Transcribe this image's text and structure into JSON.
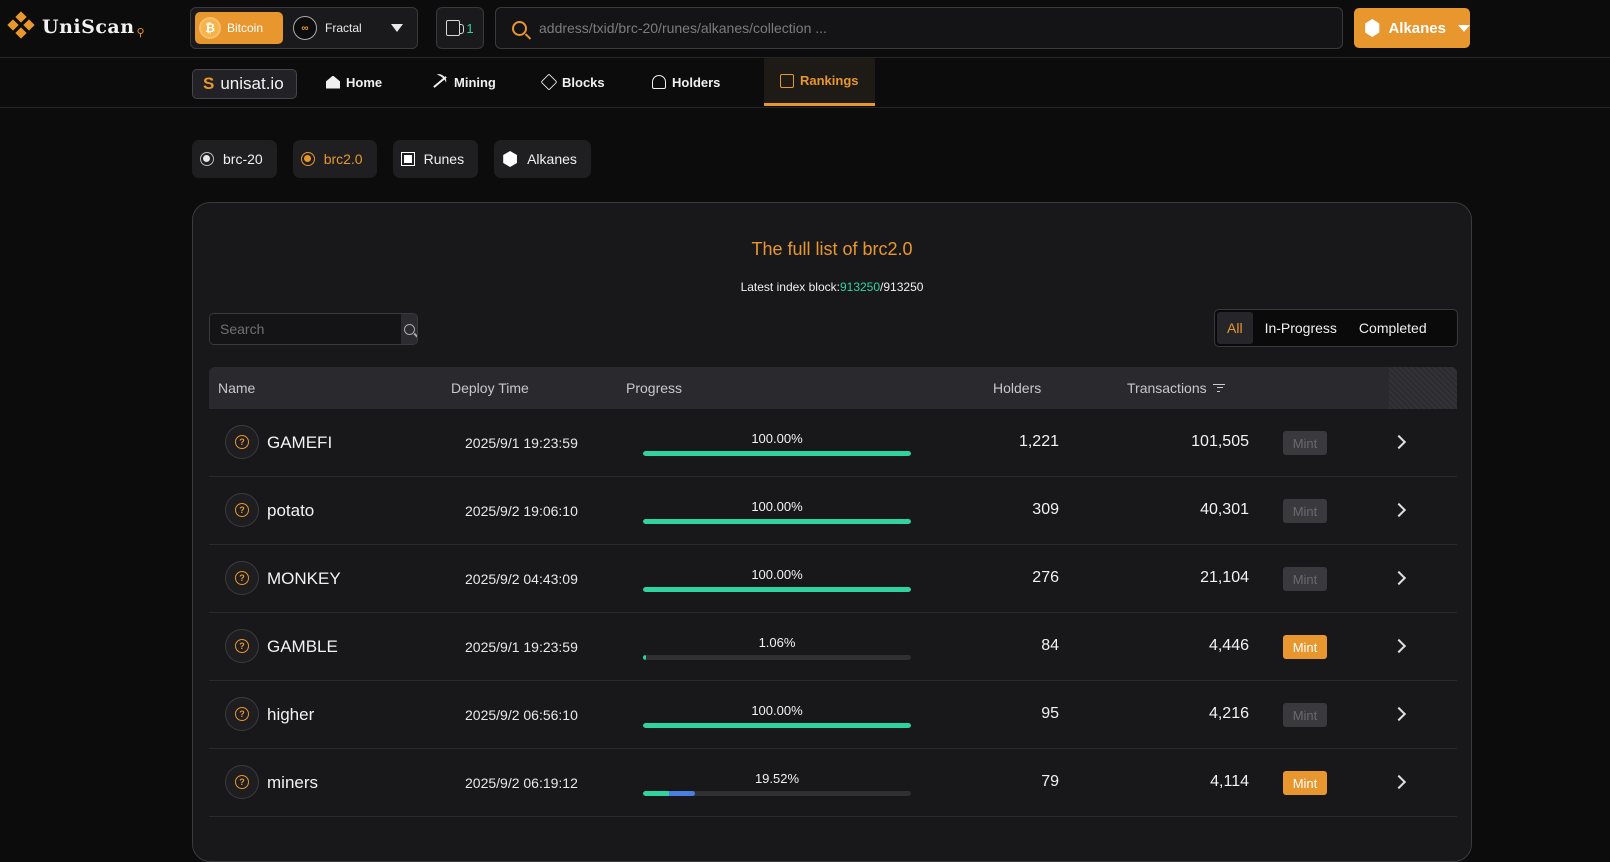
{
  "brand": {
    "name": "UniScan",
    "accent": "#e8962e"
  },
  "network": {
    "selected": "Bitcoin",
    "other": "Fractal"
  },
  "gas": {
    "count": "1"
  },
  "search": {
    "placeholder": "address/txid/brc-20/runes/alkanes/collection ..."
  },
  "protocol_button": {
    "label": "Alkanes"
  },
  "nav": {
    "unisat": "unisat.io",
    "items": [
      {
        "label": "Home"
      },
      {
        "label": "Mining"
      },
      {
        "label": "Blocks"
      },
      {
        "label": "Holders"
      },
      {
        "label": "Rankings"
      }
    ]
  },
  "filters": [
    {
      "label": "brc-20"
    },
    {
      "label": "brc2.0"
    },
    {
      "label": "Runes"
    },
    {
      "label": "Alkanes"
    }
  ],
  "panel": {
    "title": "The full list of brc2.0",
    "index_label": "Latest index block:",
    "index_current": "913250",
    "index_sep": "/",
    "index_total": "913250",
    "search_placeholder": "Search",
    "segments": [
      "All",
      "In-Progress",
      "Completed"
    ]
  },
  "table": {
    "headers": {
      "name": "Name",
      "deploy": "Deploy Time",
      "progress": "Progress",
      "holders": "Holders",
      "tx": "Transactions"
    },
    "mint_label": "Mint",
    "rows": [
      {
        "name": "GAMEFI",
        "time": "2025/9/1 19:23:59",
        "progress_text": "100.00%",
        "progress": 100,
        "holders": "1,221",
        "tx": "101,505",
        "mint_enabled": false
      },
      {
        "name": "potato",
        "time": "2025/9/2 19:06:10",
        "progress_text": "100.00%",
        "progress": 100,
        "holders": "309",
        "tx": "40,301",
        "mint_enabled": false
      },
      {
        "name": "MONKEY",
        "time": "2025/9/2 04:43:09",
        "progress_text": "100.00%",
        "progress": 100,
        "holders": "276",
        "tx": "21,104",
        "mint_enabled": false
      },
      {
        "name": "GAMBLE",
        "time": "2025/9/1 19:23:59",
        "progress_text": "1.06%",
        "progress": 1.06,
        "holders": "84",
        "tx": "4,446",
        "mint_enabled": true
      },
      {
        "name": "higher",
        "time": "2025/9/2 06:56:10",
        "progress_text": "100.00%",
        "progress": 100,
        "holders": "95",
        "tx": "4,216",
        "mint_enabled": false
      },
      {
        "name": "miners",
        "time": "2025/9/2 06:19:12",
        "progress_text": "19.52%",
        "progress": 19.52,
        "holders": "79",
        "tx": "4,114",
        "mint_enabled": true
      }
    ]
  }
}
